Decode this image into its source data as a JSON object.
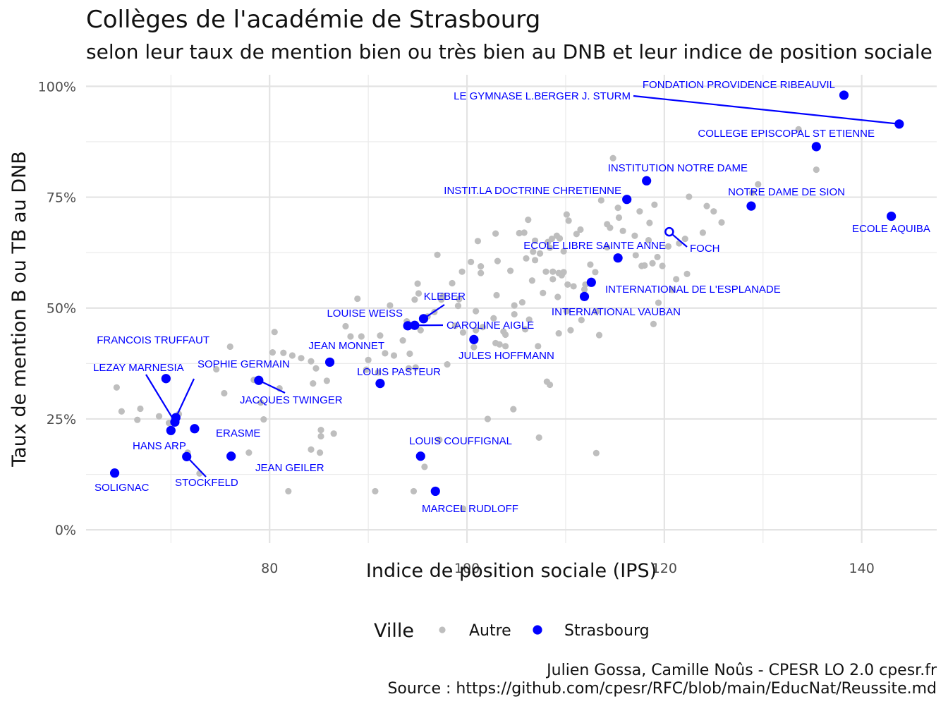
{
  "title": "Collèges de l'académie de Strasbourg",
  "subtitle": "selon leur taux de mention bien ou très bien au DNB et leur indice de position sociale",
  "caption": {
    "line1": "Julien Gossa, Camille Noûs - CPESR LO 2.0 cpesr.fr",
    "line2": "Source : https://github.com/cpesr/RFC/blob/main/EducNat/Reussite.md"
  },
  "chart_data": {
    "type": "scatter",
    "xlabel": "Indice de position sociale (IPS)",
    "ylabel": "Taux de mention B ou TB au DNB",
    "xlim": [
      61.4,
      147.6
    ],
    "ylim": [
      0,
      100
    ],
    "x_ticks": [
      80,
      100,
      120,
      140
    ],
    "y_ticks": [
      0,
      25,
      50,
      75,
      100
    ],
    "y_tick_labels": [
      "0%",
      "25%",
      "50%",
      "75%",
      "100%"
    ],
    "grid": true,
    "legend": {
      "title": "Ville",
      "position": "bottom",
      "entries": [
        {
          "name": "Autre",
          "color": "#bebebe"
        },
        {
          "name": "Strasbourg",
          "color": "#0000ff"
        }
      ]
    },
    "series": [
      {
        "name": "Strasbourg",
        "color": "#0000ff",
        "points": [
          {
            "x": 138.2,
            "y": 98.0,
            "label": "FONDATION PROVIDENCE RIBEAUVIL"
          },
          {
            "x": 143.8,
            "y": 91.5,
            "label": "LE GYMNASE L.BERGER  J. STURM"
          },
          {
            "x": 135.4,
            "y": 86.4,
            "label": "COLLEGE EPISCOPAL ST ETIENNE"
          },
          {
            "x": 118.2,
            "y": 78.7,
            "label": "INSTITUTION NOTRE DAME"
          },
          {
            "x": 116.2,
            "y": 74.5,
            "label": "INSTIT.LA DOCTRINE CHRETIENNE"
          },
          {
            "x": 128.8,
            "y": 73.0,
            "label": "NOTRE DAME DE SION"
          },
          {
            "x": 143.0,
            "y": 70.7,
            "label": "ECOLE AQUIBA"
          },
          {
            "x": 120.5,
            "y": 67.2,
            "label": "FOCH",
            "hollow": true
          },
          {
            "x": 115.3,
            "y": 61.3,
            "label": "ECOLE LIBRE SAINTE ANNE"
          },
          {
            "x": 112.6,
            "y": 55.8,
            "label": "INTERNATIONAL DE L'ESPLANADE"
          },
          {
            "x": 111.9,
            "y": 52.6,
            "label": "INTERNATIONAL VAUBAN"
          },
          {
            "x": 95.6,
            "y": 47.6,
            "label": "KLEBER"
          },
          {
            "x": 94.0,
            "y": 46.0,
            "label": "LOUISE WEISS"
          },
          {
            "x": 94.7,
            "y": 46.1,
            "label": "CAROLINE AIGLE"
          },
          {
            "x": 100.7,
            "y": 42.9,
            "label": "JULES HOFFMANN"
          },
          {
            "x": 86.1,
            "y": 37.8,
            "label": "JEAN MONNET"
          },
          {
            "x": 91.2,
            "y": 33.0,
            "label": "LOUIS PASTEUR"
          },
          {
            "x": 69.5,
            "y": 34.1,
            "label": "FRANCOIS TRUFFAUT"
          },
          {
            "x": 78.9,
            "y": 33.7,
            "label": "JACQUES TWINGER"
          },
          {
            "x": 70.5,
            "y": 25.3,
            "label": "SOPHIE GERMAIN"
          },
          {
            "x": 70.4,
            "y": 24.3,
            "label": "LEZAY MARNESIA"
          },
          {
            "x": 72.4,
            "y": 22.8,
            "label": "ERASME"
          },
          {
            "x": 70.0,
            "y": 22.4,
            "label": "HANS ARP"
          },
          {
            "x": 71.6,
            "y": 16.5,
            "label": "STOCKFELD"
          },
          {
            "x": 76.1,
            "y": 16.6,
            "label": "JEAN GEILER"
          },
          {
            "x": 95.3,
            "y": 16.6,
            "label": "LOUIS COUFFIGNAL"
          },
          {
            "x": 64.3,
            "y": 12.8,
            "label": "SOLIGNAC"
          },
          {
            "x": 96.8,
            "y": 8.7,
            "label": "MARCEL RUDLOFF"
          }
        ]
      },
      {
        "name": "Autre",
        "color": "#bebebe",
        "points": [
          {
            "x": 64.5,
            "y": 32.1
          },
          {
            "x": 65.0,
            "y": 26.7
          },
          {
            "x": 66.6,
            "y": 24.8
          },
          {
            "x": 66.9,
            "y": 27.3
          },
          {
            "x": 68.8,
            "y": 25.6
          },
          {
            "x": 69.8,
            "y": 24.1
          },
          {
            "x": 70.8,
            "y": 26.1
          },
          {
            "x": 71.7,
            "y": 17.4
          },
          {
            "x": 72.9,
            "y": 12.7
          },
          {
            "x": 74.6,
            "y": 36.2
          },
          {
            "x": 75.4,
            "y": 30.8
          },
          {
            "x": 76.0,
            "y": 41.3
          },
          {
            "x": 77.9,
            "y": 17.4
          },
          {
            "x": 78.4,
            "y": 33.8
          },
          {
            "x": 79.1,
            "y": 28.7
          },
          {
            "x": 79.4,
            "y": 24.9
          },
          {
            "x": 80.3,
            "y": 40.0
          },
          {
            "x": 80.5,
            "y": 44.6
          },
          {
            "x": 81.0,
            "y": 31.9
          },
          {
            "x": 81.4,
            "y": 39.9
          },
          {
            "x": 81.9,
            "y": 8.7
          },
          {
            "x": 82.3,
            "y": 39.3
          },
          {
            "x": 83.2,
            "y": 38.7
          },
          {
            "x": 84.2,
            "y": 38.0
          },
          {
            "x": 84.2,
            "y": 18.1
          },
          {
            "x": 84.4,
            "y": 33.0
          },
          {
            "x": 84.7,
            "y": 36.4
          },
          {
            "x": 85.1,
            "y": 17.4
          },
          {
            "x": 85.2,
            "y": 22.5
          },
          {
            "x": 85.2,
            "y": 21.1
          },
          {
            "x": 85.8,
            "y": 33.6
          },
          {
            "x": 86.5,
            "y": 21.7
          },
          {
            "x": 87.7,
            "y": 45.9
          },
          {
            "x": 88.2,
            "y": 43.6
          },
          {
            "x": 88.9,
            "y": 52.1
          },
          {
            "x": 89.3,
            "y": 43.6
          },
          {
            "x": 89.8,
            "y": 36.1
          },
          {
            "x": 90.0,
            "y": 38.3
          },
          {
            "x": 90.7,
            "y": 8.7
          },
          {
            "x": 91.0,
            "y": 35.5
          },
          {
            "x": 91.2,
            "y": 43.8
          },
          {
            "x": 91.7,
            "y": 39.8
          },
          {
            "x": 92.2,
            "y": 50.6
          },
          {
            "x": 92.6,
            "y": 39.3
          },
          {
            "x": 93.5,
            "y": 42.7
          },
          {
            "x": 93.9,
            "y": 47.0
          },
          {
            "x": 94.1,
            "y": 36.4
          },
          {
            "x": 94.2,
            "y": 39.7
          },
          {
            "x": 94.6,
            "y": 8.7
          },
          {
            "x": 94.7,
            "y": 51.9
          },
          {
            "x": 94.8,
            "y": 36.6
          },
          {
            "x": 95.0,
            "y": 55.5
          },
          {
            "x": 95.1,
            "y": 53.3
          },
          {
            "x": 95.3,
            "y": 45.0
          },
          {
            "x": 95.7,
            "y": 14.2
          },
          {
            "x": 96.0,
            "y": 48.1
          },
          {
            "x": 96.7,
            "y": 49.1
          },
          {
            "x": 97.0,
            "y": 62.0
          },
          {
            "x": 97.2,
            "y": 20.3
          },
          {
            "x": 97.4,
            "y": 51.9
          },
          {
            "x": 97.6,
            "y": 52.7
          },
          {
            "x": 98.0,
            "y": 37.3
          },
          {
            "x": 98.5,
            "y": 55.6
          },
          {
            "x": 98.8,
            "y": 46.0
          },
          {
            "x": 99.1,
            "y": 50.5
          },
          {
            "x": 99.2,
            "y": 52.0
          },
          {
            "x": 99.5,
            "y": 58.2
          },
          {
            "x": 99.6,
            "y": 4.8
          },
          {
            "x": 99.6,
            "y": 44.5
          },
          {
            "x": 100.4,
            "y": 60.4
          },
          {
            "x": 100.7,
            "y": 42.9
          },
          {
            "x": 100.7,
            "y": 41.2
          },
          {
            "x": 100.9,
            "y": 45.0
          },
          {
            "x": 100.9,
            "y": 49.3
          },
          {
            "x": 101.1,
            "y": 65.1
          },
          {
            "x": 101.4,
            "y": 59.4
          },
          {
            "x": 101.4,
            "y": 57.9
          },
          {
            "x": 101.6,
            "y": 45.7
          },
          {
            "x": 102.1,
            "y": 25.0
          },
          {
            "x": 102.7,
            "y": 47.7
          },
          {
            "x": 102.9,
            "y": 42.1
          },
          {
            "x": 102.9,
            "y": 66.8
          },
          {
            "x": 103.0,
            "y": 52.9
          },
          {
            "x": 103.1,
            "y": 60.6
          },
          {
            "x": 103.3,
            "y": 41.8
          },
          {
            "x": 103.7,
            "y": 44.7
          },
          {
            "x": 103.9,
            "y": 41.4
          },
          {
            "x": 103.9,
            "y": 44.0
          },
          {
            "x": 104.4,
            "y": 58.4
          },
          {
            "x": 104.7,
            "y": 27.2
          },
          {
            "x": 104.8,
            "y": 48.6
          },
          {
            "x": 104.8,
            "y": 50.6
          },
          {
            "x": 105.3,
            "y": 66.9
          },
          {
            "x": 105.6,
            "y": 51.3
          },
          {
            "x": 105.8,
            "y": 67.0
          },
          {
            "x": 105.9,
            "y": 45.2
          },
          {
            "x": 106.0,
            "y": 61.2
          },
          {
            "x": 106.2,
            "y": 69.9
          },
          {
            "x": 106.3,
            "y": 47.4
          },
          {
            "x": 106.6,
            "y": 56.2
          },
          {
            "x": 106.7,
            "y": 62.7
          },
          {
            "x": 106.9,
            "y": 60.8
          },
          {
            "x": 106.9,
            "y": 65.2
          },
          {
            "x": 107.2,
            "y": 41.4
          },
          {
            "x": 107.3,
            "y": 20.8
          },
          {
            "x": 107.4,
            "y": 62.3
          },
          {
            "x": 107.7,
            "y": 53.4
          },
          {
            "x": 108.0,
            "y": 58.2
          },
          {
            "x": 108.1,
            "y": 33.4
          },
          {
            "x": 108.2,
            "y": 64.9
          },
          {
            "x": 108.4,
            "y": 32.7
          },
          {
            "x": 108.4,
            "y": 63.6
          },
          {
            "x": 108.6,
            "y": 65.6
          },
          {
            "x": 108.7,
            "y": 56.5
          },
          {
            "x": 108.7,
            "y": 58.2
          },
          {
            "x": 109.1,
            "y": 66.3
          },
          {
            "x": 109.2,
            "y": 52.5
          },
          {
            "x": 109.3,
            "y": 57.9
          },
          {
            "x": 109.3,
            "y": 44.3
          },
          {
            "x": 109.4,
            "y": 65.7
          },
          {
            "x": 109.6,
            "y": 57.4
          },
          {
            "x": 109.8,
            "y": 62.8
          },
          {
            "x": 109.8,
            "y": 58.1
          },
          {
            "x": 110.1,
            "y": 71.1
          },
          {
            "x": 110.1,
            "y": 49.3
          },
          {
            "x": 110.2,
            "y": 55.3
          },
          {
            "x": 110.3,
            "y": 69.7
          },
          {
            "x": 110.5,
            "y": 45.0
          },
          {
            "x": 110.8,
            "y": 54.9
          },
          {
            "x": 111.1,
            "y": 66.7
          },
          {
            "x": 111.5,
            "y": 67.7
          },
          {
            "x": 111.6,
            "y": 47.3
          },
          {
            "x": 111.9,
            "y": 54.2
          },
          {
            "x": 112.0,
            "y": 55.3
          },
          {
            "x": 112.5,
            "y": 59.8
          },
          {
            "x": 113.0,
            "y": 58.1
          },
          {
            "x": 113.1,
            "y": 49.2
          },
          {
            "x": 113.1,
            "y": 17.3
          },
          {
            "x": 113.4,
            "y": 43.9
          },
          {
            "x": 113.6,
            "y": 74.3
          },
          {
            "x": 114.2,
            "y": 68.9
          },
          {
            "x": 114.2,
            "y": 63.7
          },
          {
            "x": 114.5,
            "y": 68.1
          },
          {
            "x": 114.8,
            "y": 83.8
          },
          {
            "x": 115.3,
            "y": 72.6
          },
          {
            "x": 115.4,
            "y": 70.4
          },
          {
            "x": 115.8,
            "y": 67.4
          },
          {
            "x": 117.0,
            "y": 66.3
          },
          {
            "x": 117.1,
            "y": 61.9
          },
          {
            "x": 117.5,
            "y": 71.8
          },
          {
            "x": 117.7,
            "y": 59.5
          },
          {
            "x": 118.0,
            "y": 59.6
          },
          {
            "x": 118.4,
            "y": 65.3
          },
          {
            "x": 118.5,
            "y": 69.2
          },
          {
            "x": 118.8,
            "y": 60.1
          },
          {
            "x": 118.9,
            "y": 46.4
          },
          {
            "x": 119.0,
            "y": 73.3
          },
          {
            "x": 119.3,
            "y": 61.5
          },
          {
            "x": 119.4,
            "y": 51.2
          },
          {
            "x": 119.8,
            "y": 59.5
          },
          {
            "x": 120.4,
            "y": 63.9
          },
          {
            "x": 120.8,
            "y": 54.1
          },
          {
            "x": 121.2,
            "y": 56.5
          },
          {
            "x": 121.5,
            "y": 64.6
          },
          {
            "x": 122.1,
            "y": 65.6
          },
          {
            "x": 122.3,
            "y": 57.7
          },
          {
            "x": 122.5,
            "y": 75.1
          },
          {
            "x": 123.9,
            "y": 67.0
          },
          {
            "x": 124.3,
            "y": 73.0
          },
          {
            "x": 125.0,
            "y": 71.8
          },
          {
            "x": 125.8,
            "y": 69.3
          },
          {
            "x": 128.9,
            "y": 76.0
          },
          {
            "x": 129.5,
            "y": 77.9
          },
          {
            "x": 133.6,
            "y": 90.3
          },
          {
            "x": 135.4,
            "y": 81.2
          }
        ]
      }
    ]
  }
}
